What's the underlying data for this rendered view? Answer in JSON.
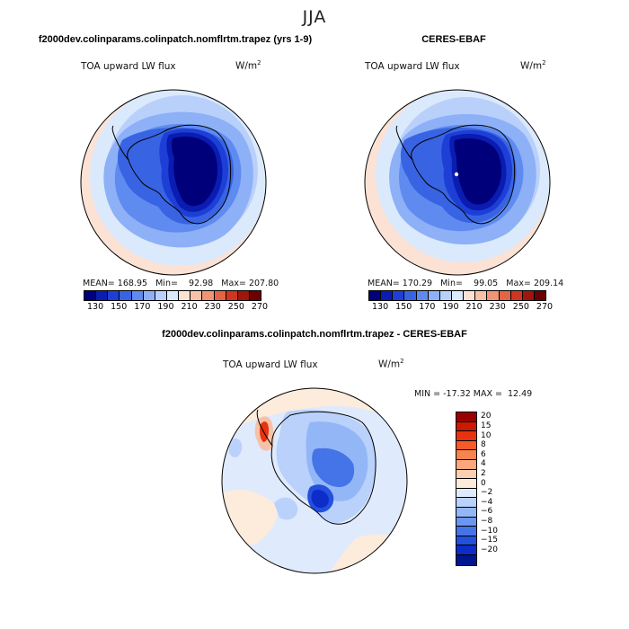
{
  "figure": {
    "title": "JJA"
  },
  "panels": {
    "model": {
      "title": "f2000dev.colinparams.colinpatch.nomflrtm.trapez (yrs 1-9)",
      "subtitle": "TOA upward LW flux",
      "units": "W/m",
      "units_exp": "2",
      "stats": {
        "mean_label": "MEAN=",
        "mean": "168.95",
        "min_label": "Min=",
        "min": "92.98",
        "max_label": "Max=",
        "max": "207.80"
      }
    },
    "obs": {
      "title": "CERES-EBAF",
      "subtitle": "TOA upward LW flux",
      "units": "W/m",
      "units_exp": "2",
      "stats": {
        "mean_label": "MEAN=",
        "mean": "170.29",
        "min_label": "Min=",
        "min": "99.05",
        "max_label": "Max=",
        "max": "209.14"
      }
    },
    "diff": {
      "title": "f2000dev.colinparams.colinpatch.nomflrtm.trapez - CERES-EBAF",
      "subtitle": "TOA upward LW flux",
      "units": "W/m",
      "units_exp": "2",
      "stats": {
        "min_label": "MIN =",
        "min": "-17.32",
        "max_label": "MAX =",
        "max": "12.49"
      }
    }
  },
  "colorbars": {
    "absolute": {
      "colors": [
        "#00007a",
        "#0a1cb2",
        "#1e3fd6",
        "#3864e3",
        "#5f8bf0",
        "#8db0f7",
        "#b9d0fb",
        "#dbe9fc",
        "#fbe2d4",
        "#f6c1a6",
        "#ef9474",
        "#e56443",
        "#cf3520",
        "#a0150c",
        "#6a0000"
      ],
      "labels": [
        "130",
        "150",
        "170",
        "190",
        "210",
        "230",
        "250",
        "270"
      ]
    },
    "difference": {
      "colors": [
        "#9a0000",
        "#cc1a00",
        "#e8330e",
        "#f45a2a",
        "#f7834e",
        "#f9a77b",
        "#fbcfb0",
        "#fdebdc",
        "#dfeafc",
        "#b9d1fb",
        "#93b6f7",
        "#6c97f1",
        "#4573e8",
        "#2350dc",
        "#0e2cc8",
        "#00168f"
      ],
      "labels": [
        "20",
        "15",
        "10",
        "8",
        "6",
        "4",
        "2",
        "0",
        "−2",
        "−4",
        "−6",
        "−8",
        "−10",
        "−15",
        "−20"
      ]
    }
  },
  "chart_data": [
    {
      "type": "heatmap",
      "title": "f2000dev.colinparams.colinpatch.nomflrtm.trapez (yrs 1-9)",
      "subtitle": "TOA upward LW flux",
      "units": "W/m^2",
      "projection": "south polar stereographic",
      "mean": 168.95,
      "min": 92.98,
      "max": 207.8,
      "contour_levels": [
        130,
        140,
        150,
        160,
        170,
        180,
        190,
        200,
        210,
        220,
        230,
        240,
        250,
        260,
        270
      ]
    },
    {
      "type": "heatmap",
      "title": "CERES-EBAF",
      "subtitle": "TOA upward LW flux",
      "units": "W/m^2",
      "projection": "south polar stereographic",
      "mean": 170.29,
      "min": 99.05,
      "max": 209.14,
      "contour_levels": [
        130,
        140,
        150,
        160,
        170,
        180,
        190,
        200,
        210,
        220,
        230,
        240,
        250,
        260,
        270
      ]
    },
    {
      "type": "heatmap",
      "title": "f2000dev.colinparams.colinpatch.nomflrtm.trapez - CERES-EBAF",
      "subtitle": "TOA upward LW flux",
      "units": "W/m^2",
      "projection": "south polar stereographic",
      "min": -17.32,
      "max": 12.49,
      "contour_levels": [
        -20,
        -15,
        -10,
        -8,
        -6,
        -4,
        -2,
        0,
        2,
        4,
        6,
        8,
        10,
        15,
        20
      ]
    }
  ]
}
